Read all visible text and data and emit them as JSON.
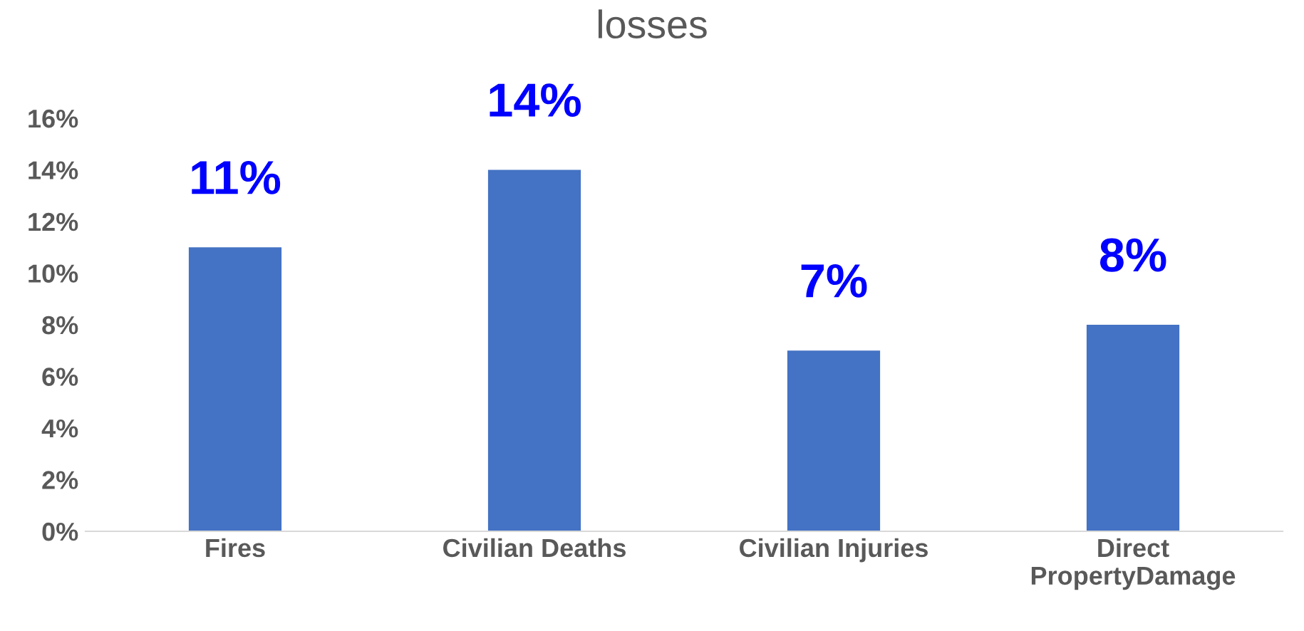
{
  "chart_data": {
    "type": "bar",
    "title": "losses",
    "categories": [
      "Fires",
      "Civilian Deaths",
      "Civilian Injuries",
      "Direct PropertyDamage"
    ],
    "values": [
      11,
      14,
      7,
      8
    ],
    "color": "#4472c4",
    "value_labels": [
      "11%",
      "14%",
      "7%",
      "8%"
    ],
    "ylim": [
      0,
      16
    ],
    "yticks": [
      {
        "value": 0,
        "label": "0%"
      },
      {
        "value": 2,
        "label": "2%"
      },
      {
        "value": 4,
        "label": "4%"
      },
      {
        "value": 6,
        "label": "6%"
      },
      {
        "value": 8,
        "label": "8%"
      },
      {
        "value": 10,
        "label": "10%"
      },
      {
        "value": 12,
        "label": "12%"
      },
      {
        "value": 14,
        "label": "14%"
      },
      {
        "value": 16,
        "label": "16%"
      }
    ],
    "grid": false,
    "legend": false
  }
}
